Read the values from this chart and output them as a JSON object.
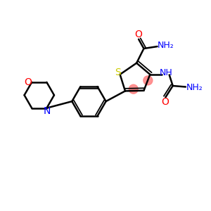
{
  "background_color": "#ffffff",
  "bond_color": "#000000",
  "S_color": "#cccc00",
  "O_color": "#ff0000",
  "N_color": "#0000ff",
  "C_color": "#000000",
  "highlight_color": "#ff8080",
  "figsize": [
    3.0,
    3.0
  ],
  "dpi": 100,
  "xlim": [
    0,
    10
  ],
  "ylim": [
    0,
    10
  ]
}
